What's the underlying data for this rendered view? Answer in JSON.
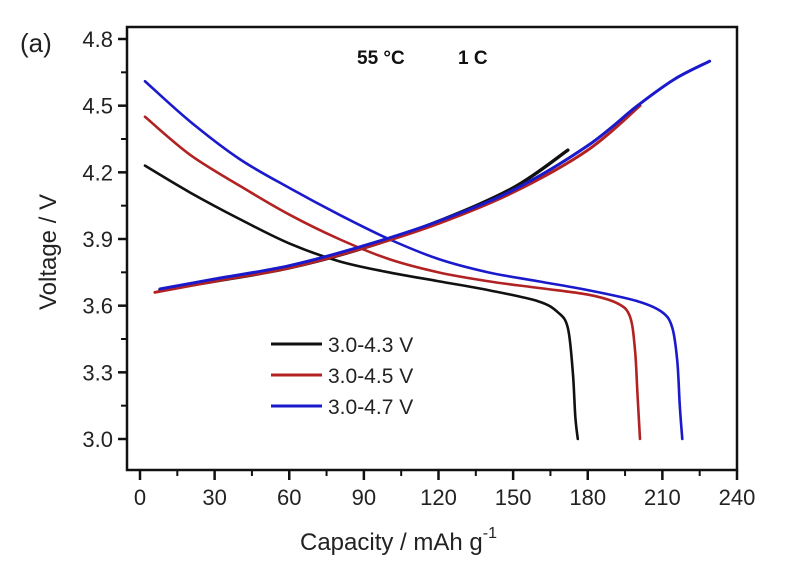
{
  "chart_data": {
    "type": "line",
    "panel_label": "(a)",
    "title": "",
    "annotations": [
      "55 °C",
      "1 C"
    ],
    "xlabel": "Capacity / mAh g",
    "xlabel_superscript": "-1",
    "ylabel": "Voltage / V",
    "xlim": [
      -4,
      236
    ],
    "ylim": [
      2.85,
      4.87
    ],
    "xticks": [
      0,
      30,
      60,
      90,
      120,
      150,
      180,
      210,
      240
    ],
    "xtick_labels": [
      "0",
      "30",
      "60",
      "90",
      "120",
      "150",
      "180",
      "210",
      "240"
    ],
    "yticks": [
      3.0,
      3.3,
      3.6,
      3.9,
      4.2,
      4.5,
      4.8
    ],
    "ytick_labels": [
      "3.0",
      "3.3",
      "3.6",
      "3.9",
      "4.2",
      "4.5",
      "4.8"
    ],
    "grid": false,
    "legend": {
      "placement": "lower-left-center"
    },
    "series": [
      {
        "name": "3.0-4.3 V",
        "color": "#111111",
        "charge": {
          "x": [
            8,
            30,
            60,
            90,
            120,
            150,
            172
          ],
          "y": [
            3.67,
            3.71,
            3.77,
            3.86,
            3.98,
            4.13,
            4.3
          ]
        },
        "discharge": {
          "x": [
            2,
            20,
            40,
            60,
            80,
            100,
            120,
            140,
            160,
            168,
            172,
            174,
            175,
            176
          ],
          "y": [
            4.23,
            4.11,
            3.99,
            3.88,
            3.8,
            3.75,
            3.71,
            3.67,
            3.62,
            3.57,
            3.5,
            3.3,
            3.1,
            3.0
          ]
        }
      },
      {
        "name": "3.0-4.5 V",
        "color": "#b22222",
        "charge": {
          "x": [
            6,
            30,
            60,
            90,
            120,
            150,
            180,
            201
          ],
          "y": [
            3.66,
            3.71,
            3.77,
            3.86,
            3.97,
            4.11,
            4.3,
            4.5
          ]
        },
        "discharge": {
          "x": [
            2,
            20,
            40,
            60,
            80,
            100,
            120,
            140,
            160,
            180,
            192,
            197,
            199,
            200,
            201
          ],
          "y": [
            4.45,
            4.28,
            4.14,
            4.01,
            3.9,
            3.81,
            3.75,
            3.71,
            3.68,
            3.65,
            3.61,
            3.55,
            3.4,
            3.2,
            3.0
          ]
        }
      },
      {
        "name": "3.0-4.7 V",
        "color": "#1a1acc",
        "charge": {
          "x": [
            8,
            30,
            60,
            90,
            120,
            150,
            180,
            200,
            215,
            229
          ],
          "y": [
            3.675,
            3.72,
            3.78,
            3.87,
            3.98,
            4.12,
            4.32,
            4.5,
            4.62,
            4.7
          ]
        },
        "discharge": {
          "x": [
            2,
            20,
            40,
            60,
            80,
            100,
            120,
            140,
            160,
            180,
            200,
            210,
            214,
            216,
            217,
            218
          ],
          "y": [
            4.61,
            4.43,
            4.26,
            4.13,
            4.01,
            3.9,
            3.81,
            3.75,
            3.71,
            3.67,
            3.62,
            3.57,
            3.5,
            3.35,
            3.15,
            3.0
          ]
        }
      }
    ]
  }
}
